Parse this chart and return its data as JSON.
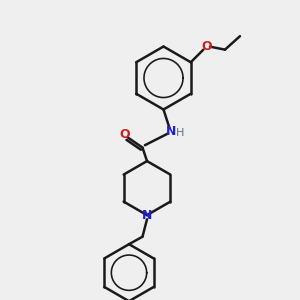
{
  "bg_color": "#efefef",
  "bond_color": "#1a1a1a",
  "N_color": "#2020cc",
  "O_color": "#cc2020",
  "NH_color": "#607080",
  "line_width": 1.8,
  "fig_size": [
    3.0,
    3.0
  ],
  "dpi": 100,
  "xlim": [
    0,
    10
  ],
  "ylim": [
    0,
    10
  ]
}
